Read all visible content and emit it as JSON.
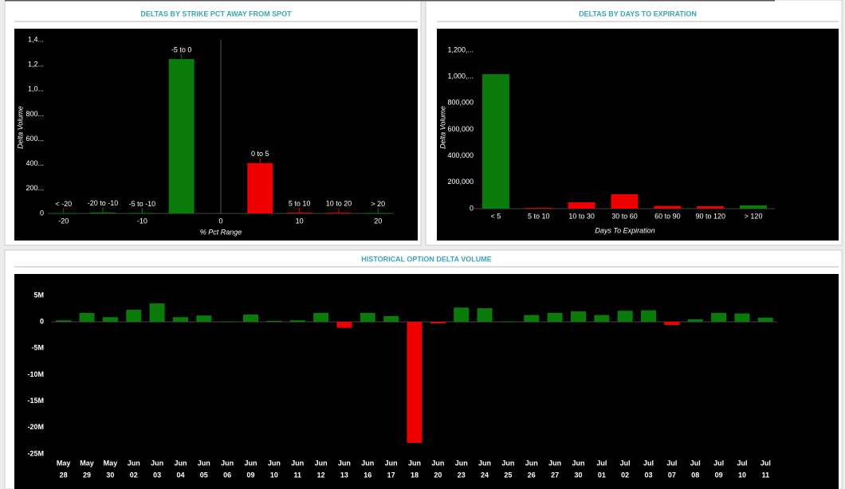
{
  "chart_data": [
    {
      "type": "bar",
      "title": "DELTAS BY STRIKE PCT AWAY FROM SPOT",
      "xlabel": "% Pct Range",
      "ylabel": "Delta Volume",
      "x": [
        -20,
        -15,
        -10,
        -5,
        5,
        10,
        15,
        20
      ],
      "categories": [
        "< -20",
        "-20 to -10",
        "-5 to -10",
        "-5 to 0",
        "0 to 5",
        "5 to 10",
        "10 to 20",
        "> 20"
      ],
      "values": [
        3000,
        8000,
        4000,
        1245000,
        406000,
        6000,
        5000,
        4000
      ],
      "colors": [
        "#0a7a0a",
        "#0a7a0a",
        "#0a7a0a",
        "#0a7a0a",
        "#ee0000",
        "#ee0000",
        "#ee0000",
        "#0a7a0a"
      ],
      "xlim": [
        -22,
        22
      ],
      "xticks": [
        -20,
        -10,
        0,
        10,
        20
      ],
      "ylim": [
        0,
        1400000
      ],
      "yticks": [
        0,
        {
          "value": 200000,
          "label": "200..."
        },
        {
          "value": 400000,
          "label": "400..."
        },
        {
          "value": 600000,
          "label": "600..."
        },
        {
          "value": 800000,
          "label": "800..."
        },
        {
          "value": 1000000,
          "label": "1,0..."
        },
        {
          "value": 1200000,
          "label": "1,2..."
        },
        {
          "value": 1400000,
          "label": "1,4..."
        }
      ]
    },
    {
      "type": "bar",
      "title": "DELTAS BY DAYS TO EXPIRATION",
      "xlabel": "Days To Expiration",
      "ylabel": "Delta Volume",
      "categories": [
        "< 5",
        "5 to 10",
        "10 to 30",
        "30 to 60",
        "60 to 90",
        "90 to 120",
        "> 120"
      ],
      "values": [
        1018000,
        5000,
        48000,
        109000,
        20000,
        18000,
        25000
      ],
      "colors": [
        "#0a7a0a",
        "#ee0000",
        "#ee0000",
        "#ee0000",
        "#ee0000",
        "#ee0000",
        "#0a7a0a"
      ],
      "ylim": [
        0,
        1200000
      ],
      "yticks": [
        0,
        {
          "value": 200000,
          "label": "200,000"
        },
        {
          "value": 400000,
          "label": "400,000"
        },
        {
          "value": 600000,
          "label": "600,000"
        },
        {
          "value": 800000,
          "label": "800,000"
        },
        {
          "value": 1000000,
          "label": "1,000,..."
        },
        {
          "value": 1200000,
          "label": "1,200,..."
        }
      ]
    },
    {
      "type": "bar",
      "title": "HISTORICAL OPTION DELTA VOLUME",
      "categories": [
        [
          "May",
          "28"
        ],
        [
          "May",
          "29"
        ],
        [
          "May",
          "30"
        ],
        [
          "Jun",
          "02"
        ],
        [
          "Jun",
          "03"
        ],
        [
          "Jun",
          "04"
        ],
        [
          "Jun",
          "05"
        ],
        [
          "Jun",
          "06"
        ],
        [
          "Jun",
          "09"
        ],
        [
          "Jun",
          "10"
        ],
        [
          "Jun",
          "11"
        ],
        [
          "Jun",
          "12"
        ],
        [
          "Jun",
          "13"
        ],
        [
          "Jun",
          "16"
        ],
        [
          "Jun",
          "17"
        ],
        [
          "Jun",
          "18"
        ],
        [
          "Jun",
          "20"
        ],
        [
          "Jun",
          "23"
        ],
        [
          "Jun",
          "24"
        ],
        [
          "Jun",
          "25"
        ],
        [
          "Jun",
          "26"
        ],
        [
          "Jun",
          "27"
        ],
        [
          "Jun",
          "30"
        ],
        [
          "Jul",
          "01"
        ],
        [
          "Jul",
          "02"
        ],
        [
          "Jul",
          "03"
        ],
        [
          "Jul",
          "07"
        ],
        [
          "Jul",
          "08"
        ],
        [
          "Jul",
          "09"
        ],
        [
          "Jul",
          "10"
        ],
        [
          "Jul",
          "11"
        ]
      ],
      "values": [
        300000,
        1700000,
        900000,
        2300000,
        3500000,
        900000,
        1200000,
        100000,
        1400000,
        200000,
        300000,
        1700000,
        -1100000,
        1700000,
        1100000,
        -22900000,
        -300000,
        2700000,
        2600000,
        100000,
        1300000,
        1700000,
        2000000,
        1300000,
        2100000,
        2200000,
        -600000,
        500000,
        1700000,
        1600000,
        800000
      ],
      "positive_color": "#0a7a0a",
      "negative_color": "#ee0000",
      "ylim": [
        -25000000,
        5000000
      ],
      "yticks": [
        {
          "value": 5000000,
          "label": "5M"
        },
        0,
        {
          "value": -5000000,
          "label": "-5M"
        },
        {
          "value": -10000000,
          "label": "-10M"
        },
        {
          "value": -15000000,
          "label": "-15M"
        },
        {
          "value": -20000000,
          "label": "-20M"
        },
        {
          "value": -25000000,
          "label": "-25M"
        }
      ]
    }
  ]
}
